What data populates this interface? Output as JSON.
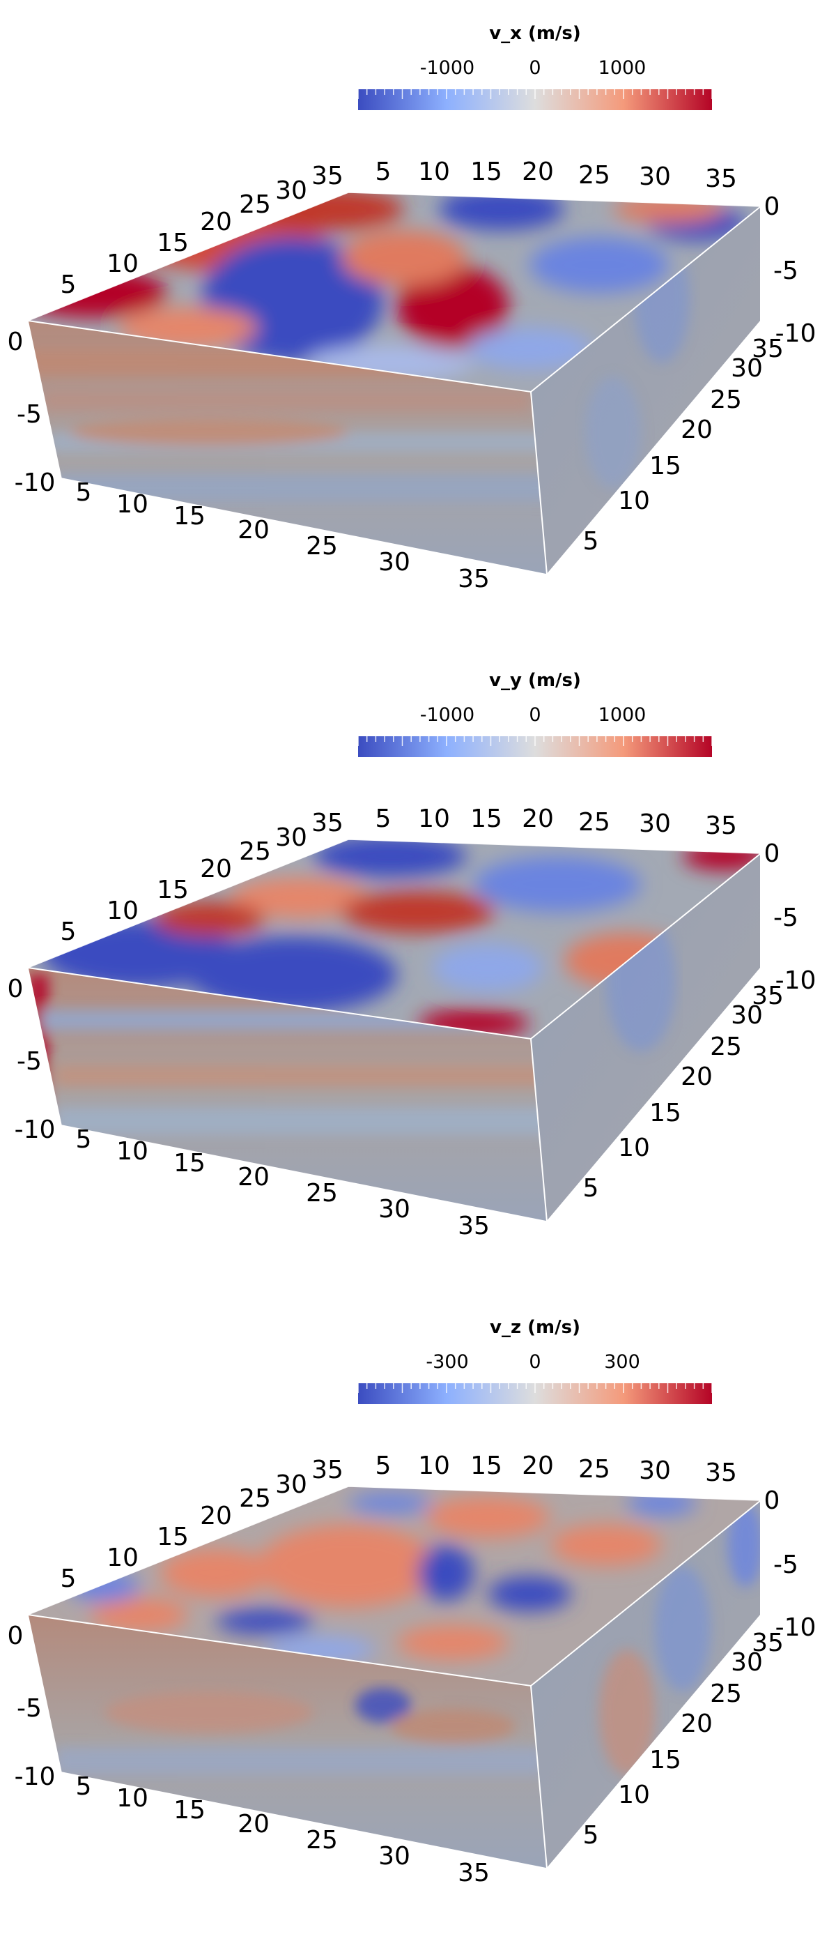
{
  "panels": [
    {
      "colorbar": {
        "title": "v_x (m/s)",
        "ticks": [
          "-1000",
          "0",
          "1000"
        ]
      },
      "x_ticks": [
        "5",
        "10",
        "15",
        "20",
        "25",
        "30",
        "35"
      ],
      "y_ticks": [
        "5",
        "10",
        "15",
        "20",
        "25",
        "30",
        "35"
      ],
      "z_ticks": [
        "0",
        "-5",
        "-10"
      ]
    },
    {
      "colorbar": {
        "title": "v_y (m/s)",
        "ticks": [
          "-1000",
          "0",
          "1000"
        ]
      },
      "x_ticks": [
        "5",
        "10",
        "15",
        "20",
        "25",
        "30",
        "35"
      ],
      "y_ticks": [
        "5",
        "10",
        "15",
        "20",
        "25",
        "30",
        "35"
      ],
      "z_ticks": [
        "0",
        "-5",
        "-10"
      ]
    },
    {
      "colorbar": {
        "title": "v_z (m/s)",
        "ticks": [
          "-300",
          "0",
          "300"
        ]
      },
      "x_ticks": [
        "5",
        "10",
        "15",
        "20",
        "25",
        "30",
        "35"
      ],
      "y_ticks": [
        "5",
        "10",
        "15",
        "20",
        "25",
        "30",
        "35"
      ],
      "z_ticks": [
        "0",
        "-5",
        "-10"
      ]
    }
  ],
  "colormap": {
    "low": "#3b4cc0",
    "mid": "#dddddd",
    "high": "#b40426"
  }
}
